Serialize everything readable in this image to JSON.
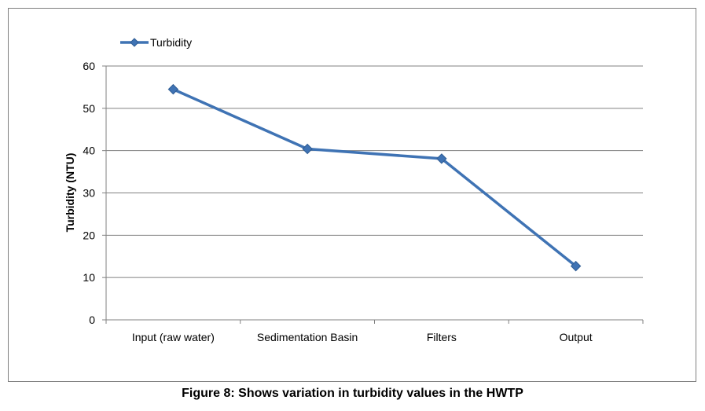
{
  "caption": "Figure 8: Shows variation in turbidity values in the HWTP",
  "chart_data": {
    "type": "line",
    "title": "",
    "xlabel": "",
    "ylabel": "Turbidity (NTU)",
    "categories": [
      "Input (raw water)",
      "Sedimentation Basin",
      "Filters",
      "Output"
    ],
    "series": [
      {
        "name": "Turbidity",
        "values": [
          54.5,
          40.4,
          38.1,
          12.7
        ],
        "color": "#3f73b4"
      }
    ],
    "ylim": [
      0,
      60
    ],
    "yticks": [
      0,
      10,
      20,
      30,
      40,
      50,
      60
    ],
    "grid": true,
    "legend_position": "top-left",
    "marker": "diamond"
  }
}
